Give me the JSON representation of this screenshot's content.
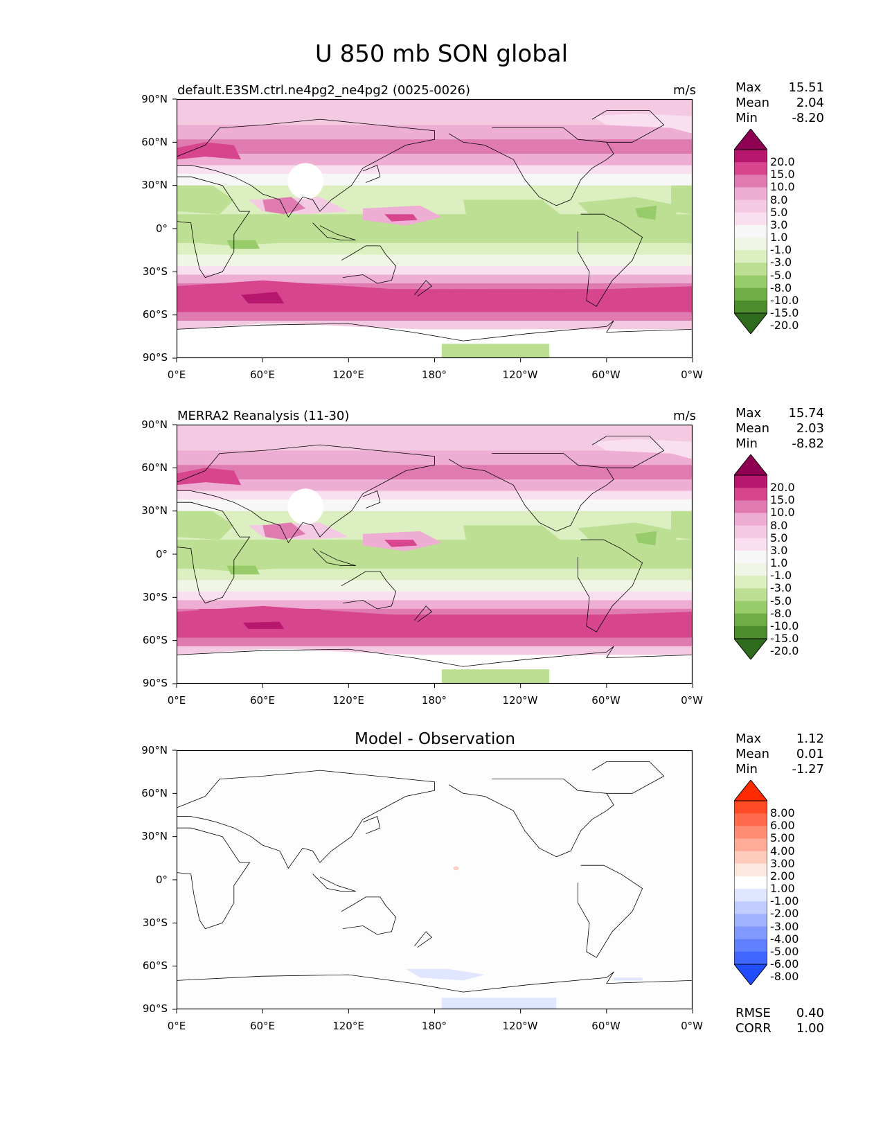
{
  "title": "U 850 mb SON global",
  "x_ticks": [
    "0°E",
    "60°E",
    "120°E",
    "180°",
    "120°W",
    "60°W",
    "0°W"
  ],
  "y_ticks": [
    "90°N",
    "60°N",
    "30°N",
    "0°",
    "30°S",
    "60°S",
    "90°S"
  ],
  "stat_labels": {
    "max": "Max",
    "mean": "Mean",
    "min": "Min"
  },
  "panels": [
    {
      "title_left": "default.E3SM.ctrl.ne4pg2_ne4pg2 (0025-0026)",
      "title_right": "m/s",
      "title_center": "",
      "stats": {
        "max": "15.51",
        "mean": "2.04",
        "min": "-8.20"
      },
      "colorbar_labels": [
        "20.0",
        "15.0",
        "10.0",
        "8.0",
        "5.0",
        "3.0",
        "1.0",
        "-1.0",
        "-3.0",
        "-5.0",
        "-8.0",
        "-10.0",
        "-15.0",
        "-20.0"
      ],
      "colorbar_colors": [
        "#8e0152",
        "#b8176e",
        "#d6458e",
        "#e07bb1",
        "#eeadd3",
        "#f4cae3",
        "#fadff0",
        "#f7f7f7",
        "#f0f6e6",
        "#dcefc0",
        "#bddf93",
        "#98cc6a",
        "#6fae45",
        "#4d8d2e",
        "#2f6b1c"
      ],
      "field": "model"
    },
    {
      "title_left": "MERRA2 Reanalysis (11-30)",
      "title_right": "m/s",
      "title_center": "",
      "stats": {
        "max": "15.74",
        "mean": "2.03",
        "min": "-8.82"
      },
      "colorbar_labels": [
        "20.0",
        "15.0",
        "10.0",
        "8.0",
        "5.0",
        "3.0",
        "1.0",
        "-1.0",
        "-3.0",
        "-5.0",
        "-8.0",
        "-10.0",
        "-15.0",
        "-20.0"
      ],
      "colorbar_colors": [
        "#8e0152",
        "#b8176e",
        "#d6458e",
        "#e07bb1",
        "#eeadd3",
        "#f4cae3",
        "#fadff0",
        "#f7f7f7",
        "#f0f6e6",
        "#dcefc0",
        "#bddf93",
        "#98cc6a",
        "#6fae45",
        "#4d8d2e",
        "#2f6b1c"
      ],
      "field": "obs"
    },
    {
      "title_left": "",
      "title_right": "",
      "title_center": "Model - Observation",
      "stats": {
        "max": "1.12",
        "mean": "0.01",
        "min": "-1.27"
      },
      "colorbar_labels": [
        "8.00",
        "6.00",
        "5.00",
        "4.00",
        "3.00",
        "2.00",
        "1.00",
        "-1.00",
        "-2.00",
        "-3.00",
        "-4.00",
        "-5.00",
        "-6.00",
        "-8.00"
      ],
      "colorbar_colors": [
        "#ff2a00",
        "#ff4a26",
        "#ff6a4c",
        "#ff8b72",
        "#ffab98",
        "#ffcbbd",
        "#ffe8e0",
        "#ffffff",
        "#e0e6ff",
        "#c0ccff",
        "#a1b3ff",
        "#8199ff",
        "#6180ff",
        "#4166ff",
        "#1f4dff"
      ],
      "field": "diff",
      "metrics": {
        "rmse_label": "RMSE",
        "rmse": "0.40",
        "corr_label": "CORR",
        "corr": "1.00"
      }
    }
  ]
}
